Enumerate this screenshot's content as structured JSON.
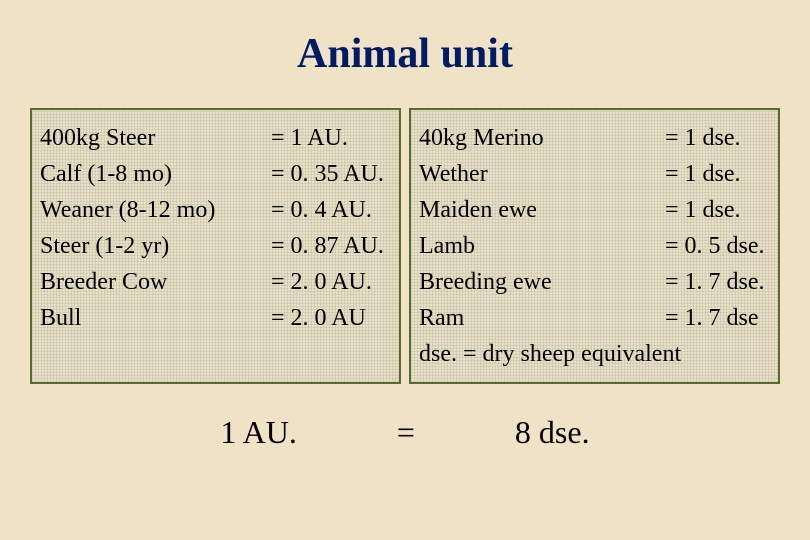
{
  "title": "Animal unit",
  "left_box": {
    "rows": [
      {
        "label": " 400kg Steer",
        "value": "=  1 AU."
      },
      {
        "label": "Calf (1-8 mo)",
        "value": "=  0. 35 AU."
      },
      {
        "label": "Weaner (8-12 mo)",
        "value": "= 0. 4 AU."
      },
      {
        "label": "Steer (1-2 yr)",
        "value": "=  0. 87 AU."
      },
      {
        "label": "Breeder Cow",
        "value": "= 2. 0 AU."
      },
      {
        "label": "Bull",
        "value": "= 2. 0 AU"
      }
    ]
  },
  "right_box": {
    "rows": [
      {
        "label": " 40kg Merino",
        "value": "= 1 dse."
      },
      {
        "label": "Wether",
        "value": "= 1 dse."
      },
      {
        "label": "Maiden ewe",
        "value": "= 1 dse."
      },
      {
        "label": "Lamb",
        "value": "= 0. 5 dse."
      },
      {
        "label": "Breeding ewe",
        "value": "= 1. 7 dse."
      },
      {
        "label": "Ram",
        "value": "= 1. 7 dse"
      }
    ],
    "note": "dse.  =  dry sheep equivalent"
  },
  "bottom": {
    "left": "1 AU.",
    "eq": "=",
    "right": "8 dse."
  },
  "colors": {
    "background": "#f0e2c5",
    "title": "#001a66",
    "box_border": "#5a6832",
    "text": "#000000"
  }
}
